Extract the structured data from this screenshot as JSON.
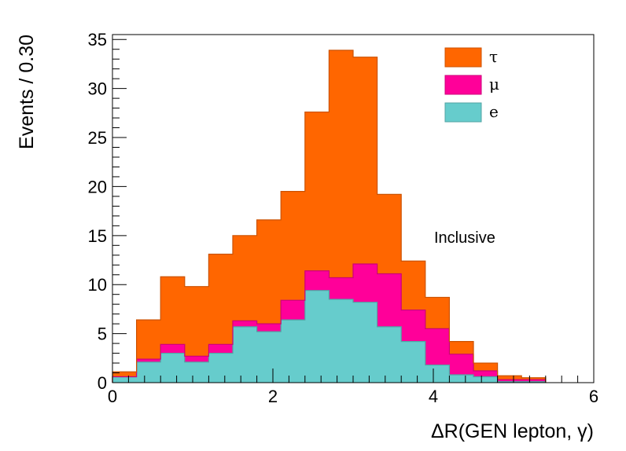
{
  "chart_data": {
    "type": "bar",
    "stacked": true,
    "xlabel": "ΔR(GEN lepton, γ)",
    "ylabel": "Events / 0.30",
    "xlim": [
      0,
      6
    ],
    "ylim": [
      0,
      35.5
    ],
    "x_ticks": [
      0,
      2,
      4,
      6
    ],
    "x_tick_labels": [
      "0",
      "2",
      "4",
      "6"
    ],
    "y_ticks": [
      0,
      5,
      10,
      15,
      20,
      25,
      30,
      35
    ],
    "y_tick_labels": [
      "0",
      "5",
      "10",
      "15",
      "20",
      "25",
      "30",
      "35"
    ],
    "bin_width": 0.3,
    "bin_edges": [
      0,
      0.3,
      0.6,
      0.9,
      1.2,
      1.5,
      1.8,
      2.1,
      2.4,
      2.7,
      3.0,
      3.3,
      3.6,
      3.9,
      4.2,
      4.5,
      4.8,
      5.1,
      5.4
    ],
    "annotation": "Inclusive",
    "legend_position": "top-right",
    "series": [
      {
        "name": "e",
        "color": "#66cccc",
        "values": [
          0.6,
          2.1,
          3.0,
          2.1,
          3.0,
          5.7,
          5.2,
          6.4,
          9.4,
          8.5,
          8.2,
          5.7,
          4.2,
          1.8,
          0.8,
          0.6,
          0.1,
          0.1
        ]
      },
      {
        "name": "μ",
        "color": "#ff0099",
        "values": [
          0.0,
          0.3,
          0.9,
          0.6,
          0.9,
          0.6,
          0.8,
          2.0,
          2.0,
          2.2,
          3.9,
          5.4,
          3.2,
          3.7,
          2.1,
          0.6,
          0.2,
          0.2
        ]
      },
      {
        "name": "τ",
        "color": "#ff6600",
        "values": [
          0.5,
          4.0,
          6.9,
          7.1,
          9.2,
          8.7,
          10.6,
          11.1,
          16.2,
          23.2,
          21.1,
          8.1,
          5.0,
          3.2,
          1.3,
          0.8,
          0.4,
          0.2
        ]
      }
    ]
  }
}
